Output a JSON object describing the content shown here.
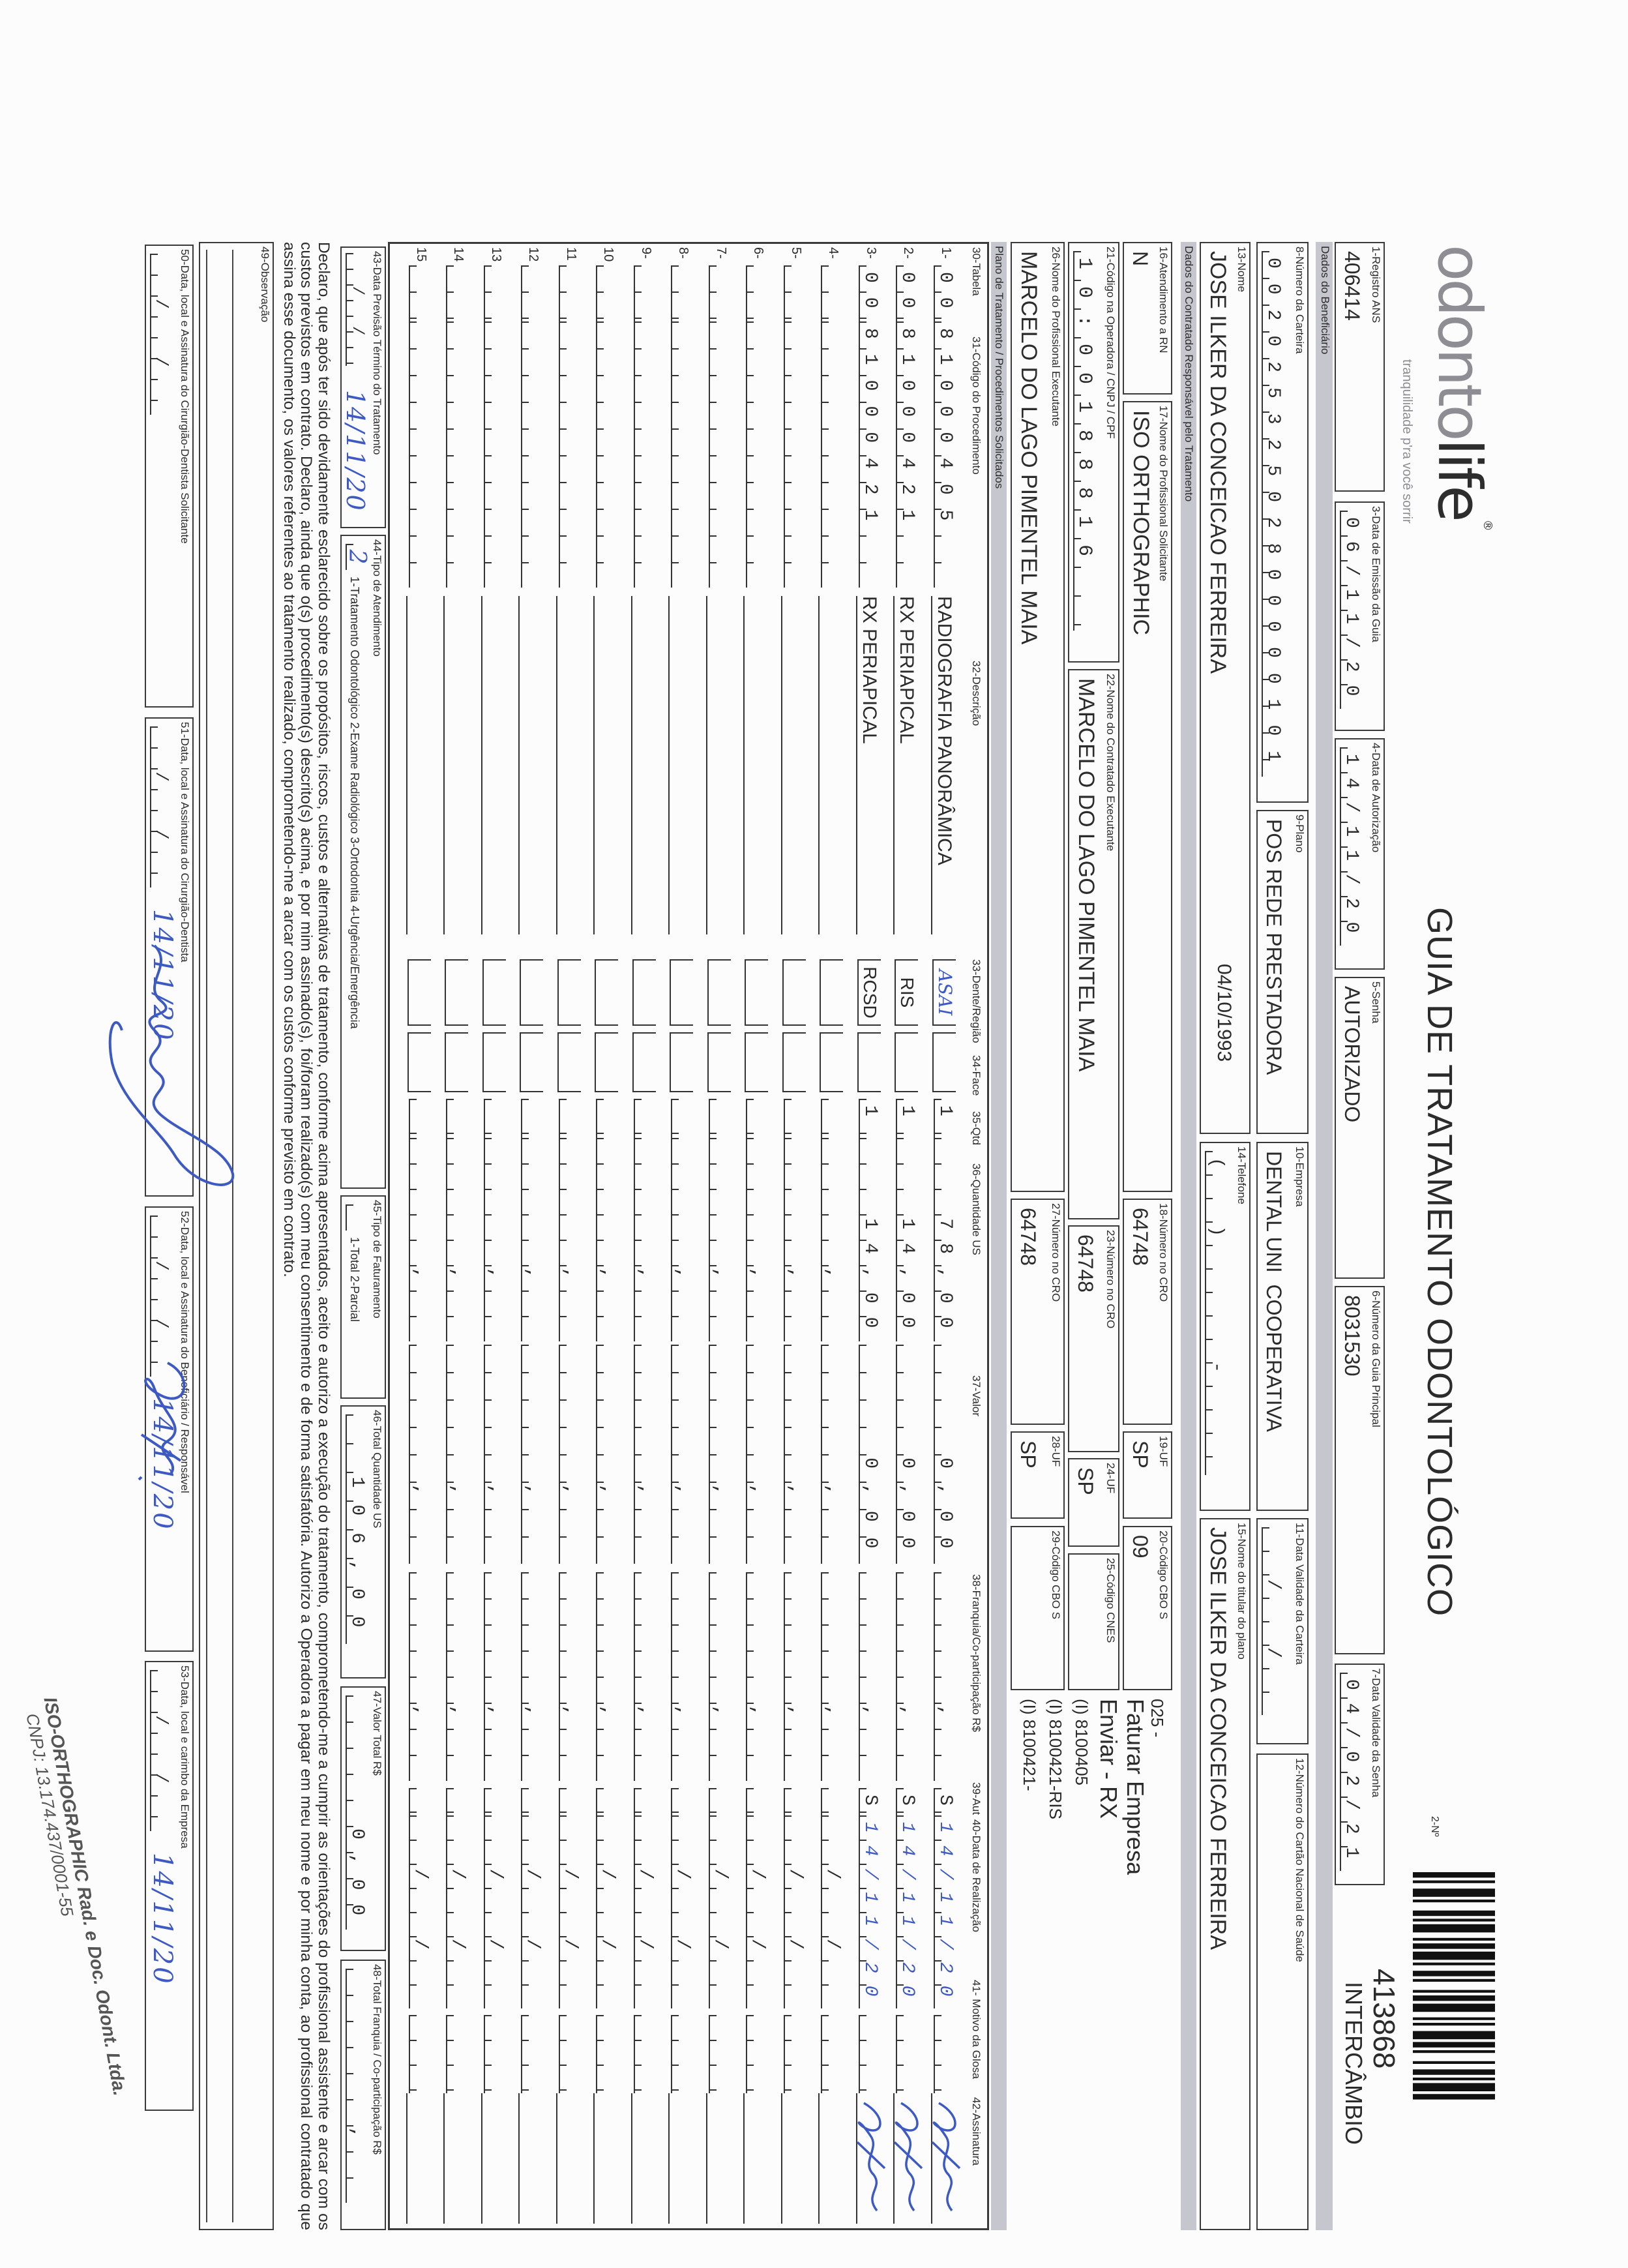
{
  "header": {
    "logo_parts": [
      "odonto",
      "life"
    ],
    "logo_mark": "®",
    "logo_tagline": "tranquilidade p'ra você sorrir",
    "title": "GUIA DE TRATAMENTO ODONTOLÓGICO",
    "number_label": "2-Nº",
    "number": "413868",
    "type": "INTERCÂMBIO"
  },
  "guide": {
    "f1": {
      "label": "1-Registro ANS",
      "value": "406414"
    },
    "f3": {
      "label": "3-Data de Emissão da Guia",
      "value": "06/11/20"
    },
    "f4": {
      "label": "4-Data de Autorização",
      "value": "14/11/20"
    },
    "f5": {
      "label": "5-Senha",
      "value": "AUTORIZADO"
    },
    "f6": {
      "label": "6-Número da Guia Principal",
      "value": "8031530"
    },
    "f7": {
      "label": "7-Data Validade da Senha",
      "value": "04/02/21"
    }
  },
  "beneficiary": {
    "section": "Dados do Beneficiário",
    "f8": {
      "label": "8-Número da Carteira",
      "value": "00202532502800000101"
    },
    "f9": {
      "label": "9-Plano",
      "value": "POS REDE PRESTADORA"
    },
    "f10": {
      "label": "10-Empresa",
      "value": "DENTAL UNI  COOPERATIVA"
    },
    "f11": {
      "label": "11-Data Validade da Carteira",
      "value": "  /  /  "
    },
    "f12": {
      "label": "12-Número do Cartão Nacional de Saúde",
      "value": ""
    },
    "f13": {
      "label": "13-Nome",
      "value": "JOSE ILKER DA CONCEICAO FERREIRA",
      "birth_date": "04/10/1993"
    },
    "f14": {
      "label": "14-Telefone",
      "value": "(  )     -    "
    },
    "f15": {
      "label": "15-Nome do titular do plano",
      "value": "JOSE ILKER DA CONCEICAO FERREIRA"
    }
  },
  "contractor": {
    "section": "Dados do Contratado Responsável pelo Tratamento",
    "f16": {
      "label": "16-Atendimento a RN",
      "value": "N"
    },
    "f17": {
      "label": "17-Nome do Profissional Solicitante",
      "value": "ISO ORTHOGRAPHIC"
    },
    "f18": {
      "label": "18-Número no CRO",
      "value": "64748"
    },
    "f19": {
      "label": "19-UF",
      "value": "SP"
    },
    "f20": {
      "label": "20-Código CBO S",
      "value": "09"
    },
    "f21": {
      "label": "21-Código na Operadora / CNPJ / CPF",
      "value": "10:00188816  "
    },
    "f22": {
      "label": "22-Nome do Contratado Executante",
      "value": "MARCELO DO LAGO PIMENTEL MAIA"
    },
    "f23": {
      "label": "23-Número no CRO",
      "value": "64748"
    },
    "f24": {
      "label": "24-UF",
      "value": "SP"
    },
    "f25": {
      "label": "25-Código CNES",
      "value": ""
    },
    "f26": {
      "label": "26-Nome do Profissional Executante",
      "value": "MARCELO DO LAGO PIMENTEL MAIA"
    },
    "f27": {
      "label": "27-Número no CRO",
      "value": "64748"
    },
    "f28": {
      "label": "28-UF",
      "value": "SP"
    },
    "f29": {
      "label": "29-Código CBO S",
      "value": ""
    },
    "notes": [
      "025 -",
      "Faturar Empresa",
      "Enviar - RX",
      "(I) 8100405",
      "(I) 8100421-RIS",
      "(I) 8100421-"
    ]
  },
  "procedures": {
    "section": "Plano de Tratamento / Procedimentos Solicitados",
    "columns": {
      "tabela": "30-Tabela",
      "codigo": "31-Código do Procedimento",
      "descricao": "32-Descrição",
      "dente": "33-Dente/Região",
      "face": "34-Face",
      "qtd": "35-Qtd",
      "qtd_us": "36-Quantidade US",
      "valor": "37-Valor",
      "franquia": "38-Franquia/Co-participação R$",
      "aut": "39-Aut",
      "data": "40-Data de Realização",
      "motivo": "41- Motivo da Glosa",
      "assinatura": "42-Assinatura"
    },
    "rows": [
      {
        "n": "1-",
        "tabela": "00",
        "codigo": "81000405",
        "descricao": "RADIOGRAFIA PANORÂMICA",
        "dente": "ASAI",
        "face": "",
        "qtd": "1",
        "qtd_us": "78,00",
        "valor": "0,00",
        "franquia": "",
        "aut": "S",
        "data": "14/11/20",
        "motivo": "",
        "signed": true,
        "handwritten": [
          "dente",
          "data"
        ]
      },
      {
        "n": "2-",
        "tabela": "00",
        "codigo": "81000421",
        "descricao": "RX PERIAPICAL",
        "dente": "RIS",
        "face": "",
        "qtd": "1",
        "qtd_us": "14,00",
        "valor": "0,00",
        "franquia": "",
        "aut": "S",
        "data": "14/11/20",
        "motivo": "",
        "signed": true,
        "handwritten": [
          "data"
        ]
      },
      {
        "n": "3-",
        "tabela": "00",
        "codigo": "81000421",
        "descricao": "RX PERIAPICAL",
        "dente": "RCSD",
        "face": "",
        "qtd": "1",
        "qtd_us": "14,00",
        "valor": "0,00",
        "franquia": "",
        "aut": "S",
        "data": "14/11/20",
        "motivo": "",
        "signed": true,
        "handwritten": [
          "data"
        ]
      },
      {
        "n": "4-"
      },
      {
        "n": "5-"
      },
      {
        "n": "6-"
      },
      {
        "n": "7-"
      },
      {
        "n": "8-"
      },
      {
        "n": "9-"
      },
      {
        "n": "10"
      },
      {
        "n": "11"
      },
      {
        "n": "12"
      },
      {
        "n": "13"
      },
      {
        "n": "14"
      },
      {
        "n": "15"
      }
    ]
  },
  "totals": {
    "f43": {
      "label": "43-Data Previsão Término do Tratamento",
      "cells": "  /  /  ",
      "value": "14/11/20"
    },
    "f44": {
      "label": "44-Tipo de Atendimento",
      "value": "2",
      "options": "1-Tratamento Odontológico  2-Exame Radiológico  3-Ortodontia  4-Urgência/Emergência"
    },
    "f45": {
      "label": "45-Tipo de Faturamento",
      "value": "",
      "options": "1-Total  2-Parcial"
    },
    "f46": {
      "label": "46-Total Quantidade US",
      "value": "  106,00"
    },
    "f47": {
      "label": "47-Valor Total R$",
      "value": "     0,00"
    },
    "f48": {
      "label": "48-Total Franquia / Co-participação R$",
      "value": "      ,  "
    }
  },
  "declaration": "Declaro, que após ter sido devidamente esclarecido sobre os propósitos, riscos, custos e alternativas de tratamento, conforme acima apresentados, aceito e autorizo a execução do tratamento, comprometendo-me a cumprir as orientações do profissional assistente e arcar com os custos previstos em contrato. Declaro, ainda que o(s) procedimento(s) descrito(s) acima, e por mim assinado(s), foi/foram realizado(s) com meu consentimento e de forma satisfatória. Autorizo a Operadora a pagar em meu nome e por minha conta, ao profissional contratado que assina esse documento, os valores referentes ao tratamento realizado, comprometendo-me a arcar com os custos conforme previsto em contrato.",
  "observation": {
    "label": "49-Observação",
    "value": ""
  },
  "signatures": {
    "f50": {
      "label": "50-Data, local e Assinatura do Cirurgião-Dentista Solicitante",
      "cells": "  /  /  ",
      "value": ""
    },
    "f51": {
      "label": "51-Data, local e Assinatura do Cirurgião-Dentista",
      "cells": "  /  /  ",
      "value": "14/11/20"
    },
    "f52": {
      "label": "52-Data, local e Assinatura do Beneficiário / Responsável",
      "cells": "  /  /  ",
      "value": "14/11/20"
    },
    "f53": {
      "label": "53-Data, local e carimbo da Empresa",
      "cells": "  /  /  ",
      "value": "14/11/20"
    }
  },
  "stamp": {
    "line1": "ISO-ORTHOGRAPHIC Rad. e Doc. Odont. Ltda.",
    "line2": "CNPJ: 13.174.437/0001-55"
  },
  "colors": {
    "ink": "#3d5ac4",
    "band": "#c6c7ce",
    "text": "#2b2b2b"
  }
}
